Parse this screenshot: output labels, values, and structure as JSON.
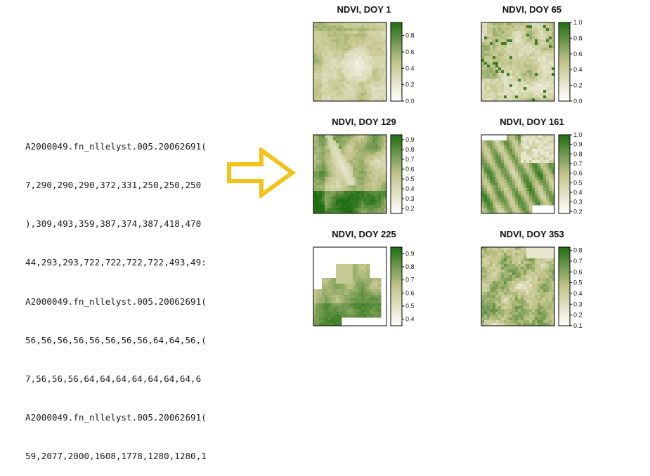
{
  "text_block": {
    "lines": [
      "A2000049.fn_nllelyst.005.20062691(",
      "7,290,290,290,372,331,250,250,250",
      "),309,493,359,387,374,387,418,470",
      "44,293,293,722,722,722,722,493,49:",
      "A2000049.fn_nllelyst.005.20062691(",
      "56,56,56,56,56,56,56,56,64,64,56,(",
      "7,56,56,56,64,64,64,64,64,64,64,6",
      "A2000049.fn_nllelyst.005.20062691(",
      "59,2077,2000,1608,1778,1280,1280,1"
    ]
  },
  "arrow": {
    "color": "#f2c21b",
    "icon": "right-arrow-icon"
  },
  "colors": {
    "low": "#ffffff",
    "mid": "#c2c48a",
    "high": "#1f6e12"
  },
  "panels": [
    {
      "title": "NDVI, DOY 1",
      "ticks": [
        "0.0",
        "0.2",
        "0.4",
        "0.6",
        "0.8"
      ],
      "legend_min": 0.0,
      "legend_max": 0.96,
      "pattern": "doy1"
    },
    {
      "title": "NDVI, DOY 65",
      "ticks": [
        "0.0",
        "0.2",
        "0.4",
        "0.6",
        "0.8",
        "1.0"
      ],
      "legend_min": 0.0,
      "legend_max": 1.0,
      "pattern": "doy65"
    },
    {
      "title": "NDVI, DOY 129",
      "ticks": [
        "0.2",
        "0.3",
        "0.4",
        "0.5",
        "0.6",
        "0.7",
        "0.8",
        "0.9"
      ],
      "legend_min": 0.15,
      "legend_max": 0.95,
      "pattern": "doy129"
    },
    {
      "title": "NDVI, DOY 161",
      "ticks": [
        "0.2",
        "0.3",
        "0.4",
        "0.5",
        "0.6",
        "0.7",
        "0.8",
        "0.9",
        "1.0"
      ],
      "legend_min": 0.18,
      "legend_max": 1.0,
      "pattern": "doy161"
    },
    {
      "title": "NDVI, DOY 225",
      "ticks": [
        "0.4",
        "0.5",
        "0.6",
        "0.7",
        "0.8",
        "0.9"
      ],
      "legend_min": 0.35,
      "legend_max": 0.95,
      "pattern": "doy225"
    },
    {
      "title": "NDVI, DOY 353",
      "ticks": [
        "0.1",
        "0.2",
        "0.3",
        "0.4",
        "0.5",
        "0.6",
        "0.7",
        "0.8"
      ],
      "legend_min": 0.1,
      "legend_max": 0.83,
      "pattern": "doy353"
    }
  ]
}
